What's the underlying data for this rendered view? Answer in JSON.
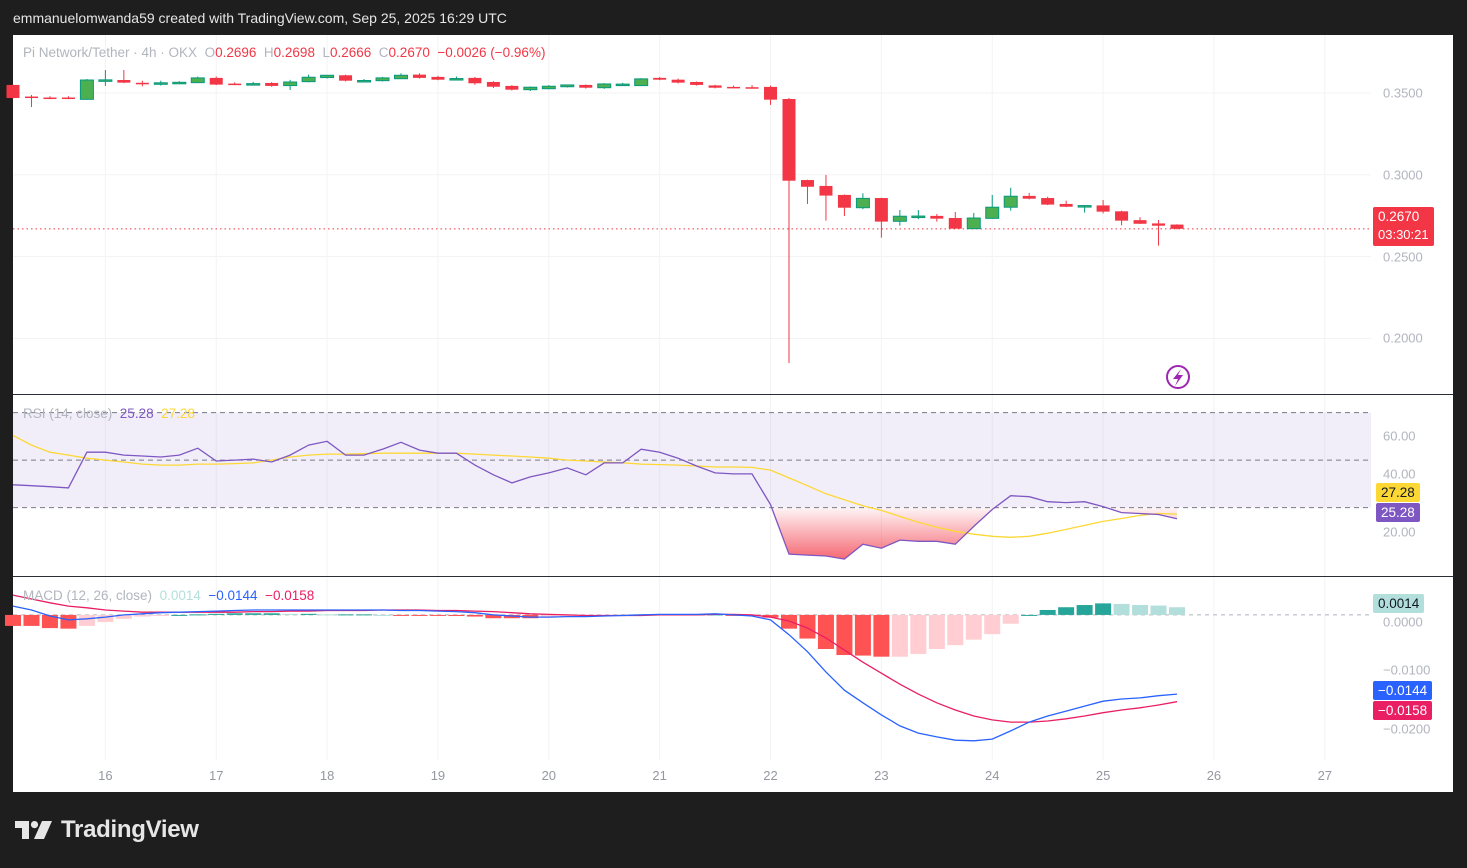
{
  "caption": "emmanuelomwanda59 created with TradingView.com, Sep 25, 2025 16:29 UTC",
  "brand": "TradingView",
  "legend": {
    "symbol": "Pi Network/Tether · 4h · OKX",
    "o_label": "O",
    "open": "0.2696",
    "h_label": "H",
    "high": "0.2698",
    "l_label": "L",
    "low": "0.2666",
    "c_label": "C",
    "close": "0.2670",
    "change": "−0.0026 (−0.96%)"
  },
  "price_tag": {
    "price": "0.2670",
    "countdown": "03:30:21"
  },
  "colors": {
    "up": "#4caf50",
    "up_border": "#089981",
    "down": "#f23645",
    "rsi": "#7e57c2",
    "rsi_ma": "#fdd835",
    "macd": "#2962ff",
    "signal": "#e91e63",
    "hist_neg_strong": "#ff5252",
    "hist_neg_weak": "#ffcdd2",
    "hist_pos_strong": "#26a69a",
    "hist_pos_weak": "#b2dfdb"
  },
  "icons": {
    "lightning": "lightning-bolt-icon",
    "logo": "tradingview-logo-icon"
  },
  "rsi_legend": {
    "title": "RSI (14, close)",
    "rsi": "25.28",
    "ma": "27.28"
  },
  "macd_legend": {
    "title": "MACD (12, 26, close)",
    "hist": "0.0014",
    "macd": "−0.0144",
    "signal": "−0.0158"
  },
  "chart_data": [
    {
      "type": "candlestick",
      "title": "Pi Network/Tether · 4h · OKX",
      "xlim": [
        "2025-09-15 04:00",
        "2025-09-27 10:00"
      ],
      "ylim": [
        0.1661,
        0.3854
      ],
      "grid": true,
      "y_ticks": [
        "0.3500",
        "0.3000",
        "0.2500",
        "0.2000"
      ],
      "y_tick_values": [
        0.35,
        0.3,
        0.25,
        0.2
      ],
      "x_ticks": [
        "16",
        "17",
        "18",
        "19",
        "20",
        "21",
        "22",
        "23",
        "24",
        "25",
        "26",
        "27"
      ],
      "x_tick_dates": [
        "2025-09-16 00:00",
        "2025-09-17 00:00",
        "2025-09-18 00:00",
        "2025-09-19 00:00",
        "2025-09-20 00:00",
        "2025-09-21 00:00",
        "2025-09-22 00:00",
        "2025-09-23 00:00",
        "2025-09-24 00:00",
        "2025-09-25 00:00",
        "2025-09-26 00:00",
        "2025-09-27 00:00"
      ],
      "last_price": 0.267,
      "candles_columns": [
        "time",
        "open",
        "high",
        "low",
        "close"
      ],
      "candles": [
        [
          "2025-09-15 04:00",
          0.3549,
          0.3552,
          0.3466,
          0.3469
        ],
        [
          "2025-09-15 08:00",
          0.3478,
          0.3488,
          0.3414,
          0.3474
        ],
        [
          "2025-09-15 12:00",
          0.3472,
          0.348,
          0.3462,
          0.347
        ],
        [
          "2025-09-15 16:00",
          0.3472,
          0.348,
          0.3462,
          0.3471
        ],
        [
          "2025-09-15 20:00",
          0.3461,
          0.3585,
          0.3458,
          0.3579
        ],
        [
          "2025-09-16 00:00",
          0.3577,
          0.364,
          0.3543,
          0.358
        ],
        [
          "2025-09-16 04:00",
          0.3579,
          0.364,
          0.356,
          0.3563
        ],
        [
          "2025-09-16 08:00",
          0.3562,
          0.3575,
          0.354,
          0.3561
        ],
        [
          "2025-09-16 12:00",
          0.3562,
          0.3575,
          0.3545,
          0.3562
        ],
        [
          "2025-09-16 16:00",
          0.3564,
          0.3572,
          0.3555,
          0.3565
        ],
        [
          "2025-09-16 20:00",
          0.3563,
          0.36,
          0.356,
          0.3592
        ],
        [
          "2025-09-17 00:00",
          0.3592,
          0.36,
          0.3548,
          0.3551
        ],
        [
          "2025-09-17 04:00",
          0.3557,
          0.3565,
          0.3548,
          0.3556
        ],
        [
          "2025-09-17 08:00",
          0.3557,
          0.3568,
          0.355,
          0.3557
        ],
        [
          "2025-09-17 12:00",
          0.3561,
          0.3566,
          0.3538,
          0.3543
        ],
        [
          "2025-09-17 16:00",
          0.3545,
          0.358,
          0.3518,
          0.3567
        ],
        [
          "2025-09-17 20:00",
          0.3569,
          0.3612,
          0.3565,
          0.3596
        ],
        [
          "2025-09-18 00:00",
          0.3594,
          0.361,
          0.3588,
          0.3608
        ],
        [
          "2025-09-18 04:00",
          0.3608,
          0.3612,
          0.357,
          0.3575
        ],
        [
          "2025-09-18 08:00",
          0.3575,
          0.3585,
          0.357,
          0.3576
        ],
        [
          "2025-09-18 12:00",
          0.3575,
          0.3598,
          0.357,
          0.3592
        ],
        [
          "2025-09-18 16:00",
          0.3587,
          0.362,
          0.3585,
          0.3608
        ],
        [
          "2025-09-18 20:00",
          0.3612,
          0.362,
          0.3588,
          0.3592
        ],
        [
          "2025-09-19 00:00",
          0.3598,
          0.3605,
          0.3578,
          0.3581
        ],
        [
          "2025-09-19 04:00",
          0.3587,
          0.36,
          0.3582,
          0.3588
        ],
        [
          "2025-09-19 08:00",
          0.3592,
          0.3598,
          0.355,
          0.3559
        ],
        [
          "2025-09-19 12:00",
          0.3567,
          0.3572,
          0.353,
          0.3538
        ],
        [
          "2025-09-19 16:00",
          0.3543,
          0.3548,
          0.3515,
          0.352
        ],
        [
          "2025-09-19 20:00",
          0.352,
          0.354,
          0.3512,
          0.3535
        ],
        [
          "2025-09-20 00:00",
          0.3526,
          0.3548,
          0.3522,
          0.3541
        ],
        [
          "2025-09-20 04:00",
          0.3538,
          0.3551,
          0.3533,
          0.3549
        ],
        [
          "2025-09-20 08:00",
          0.3549,
          0.3552,
          0.3527,
          0.3532
        ],
        [
          "2025-09-20 12:00",
          0.3532,
          0.356,
          0.3525,
          0.3555
        ],
        [
          "2025-09-20 16:00",
          0.3553,
          0.3562,
          0.3545,
          0.3554
        ],
        [
          "2025-09-20 20:00",
          0.3545,
          0.359,
          0.3542,
          0.3586
        ],
        [
          "2025-09-21 00:00",
          0.3592,
          0.3598,
          0.3578,
          0.3581
        ],
        [
          "2025-09-21 04:00",
          0.3581,
          0.3588,
          0.3558,
          0.3563
        ],
        [
          "2025-09-21 08:00",
          0.3567,
          0.357,
          0.3545,
          0.3549
        ],
        [
          "2025-09-21 12:00",
          0.3546,
          0.355,
          0.3528,
          0.3532
        ],
        [
          "2025-09-21 16:00",
          0.3537,
          0.3545,
          0.353,
          0.3536
        ],
        [
          "2025-09-21 20:00",
          0.3535,
          0.3548,
          0.353,
          0.3534
        ],
        [
          "2025-09-22 00:00",
          0.3537,
          0.3545,
          0.3427,
          0.3459
        ],
        [
          "2025-09-22 04:00",
          0.3463,
          0.347,
          0.185,
          0.2964
        ],
        [
          "2025-09-22 08:00",
          0.2968,
          0.297,
          0.2822,
          0.2927
        ],
        [
          "2025-09-22 12:00",
          0.2932,
          0.2999,
          0.272,
          0.2873
        ],
        [
          "2025-09-22 16:00",
          0.2877,
          0.288,
          0.2748,
          0.2799
        ],
        [
          "2025-09-22 20:00",
          0.2799,
          0.2887,
          0.279,
          0.2856
        ],
        [
          "2025-09-23 00:00",
          0.2858,
          0.286,
          0.2616,
          0.2714
        ],
        [
          "2025-09-23 04:00",
          0.2716,
          0.2785,
          0.2689,
          0.2747
        ],
        [
          "2025-09-23 08:00",
          0.2746,
          0.2785,
          0.2729,
          0.2748
        ],
        [
          "2025-09-23 12:00",
          0.2749,
          0.276,
          0.2714,
          0.2732
        ],
        [
          "2025-09-23 16:00",
          0.2736,
          0.2773,
          0.267,
          0.2671
        ],
        [
          "2025-09-23 20:00",
          0.2671,
          0.2767,
          0.2668,
          0.2736
        ],
        [
          "2025-09-24 00:00",
          0.2734,
          0.2877,
          0.2732,
          0.2802
        ],
        [
          "2025-09-24 04:00",
          0.2802,
          0.2921,
          0.2781,
          0.2869
        ],
        [
          "2025-09-24 08:00",
          0.2871,
          0.2889,
          0.285,
          0.2854
        ],
        [
          "2025-09-24 12:00",
          0.2858,
          0.2866,
          0.2815,
          0.2818
        ],
        [
          "2025-09-24 16:00",
          0.2822,
          0.2842,
          0.2803,
          0.2805
        ],
        [
          "2025-09-24 20:00",
          0.2808,
          0.2815,
          0.2769,
          0.2812
        ],
        [
          "2025-09-25 00:00",
          0.2813,
          0.2846,
          0.2764,
          0.2775
        ],
        [
          "2025-09-25 04:00",
          0.2777,
          0.2781,
          0.2691,
          0.272
        ],
        [
          "2025-09-25 08:00",
          0.2723,
          0.2741,
          0.27,
          0.2701
        ],
        [
          "2025-09-25 12:00",
          0.2703,
          0.2724,
          0.2567,
          0.2689
        ],
        [
          "2025-09-25 16:00",
          0.2696,
          0.2698,
          0.2666,
          0.267
        ]
      ]
    },
    {
      "type": "line",
      "title": "RSI (14, close)",
      "ylim": [
        1.2,
        77.4
      ],
      "y_ticks": [
        "60.00",
        "40.00",
        "20.00"
      ],
      "y_tick_values": [
        60,
        40,
        20
      ],
      "levels": [
        70,
        50,
        30
      ],
      "series": [
        {
          "name": "RSI",
          "values": [
            39.6,
            39.2,
            38.8,
            38.3,
            53.3,
            53.3,
            52.1,
            51.7,
            51.3,
            52.1,
            55.0,
            49.6,
            50.0,
            50.4,
            49.2,
            52.1,
            56.3,
            57.9,
            52.1,
            52.1,
            54.6,
            57.5,
            54.2,
            52.9,
            52.9,
            47.9,
            43.8,
            40.4,
            42.9,
            44.6,
            46.7,
            43.8,
            48.8,
            48.8,
            54.6,
            53.3,
            50.8,
            47.5,
            44.6,
            44.2,
            44.2,
            31.3,
            10.4,
            10.0,
            9.6,
            8.3,
            14.6,
            12.9,
            16.3,
            15.8,
            15.8,
            14.6,
            22.1,
            29.2,
            35.0,
            34.6,
            32.5,
            32.1,
            32.5,
            30.4,
            27.9,
            27.5,
            27.1,
            25.28
          ]
        },
        {
          "name": "MA",
          "values": [
            60.4,
            56.3,
            53.3,
            52.1,
            50.8,
            50.0,
            49.2,
            48.3,
            47.9,
            47.9,
            48.3,
            48.3,
            48.5,
            48.8,
            50.0,
            51.3,
            52.1,
            52.5,
            52.5,
            52.7,
            52.9,
            52.9,
            52.9,
            52.9,
            52.9,
            52.5,
            52.1,
            51.7,
            51.3,
            50.8,
            50.0,
            49.6,
            49.2,
            48.8,
            48.3,
            48.1,
            47.9,
            47.5,
            47.1,
            47.1,
            46.9,
            45.8,
            42.5,
            39.2,
            35.8,
            33.3,
            30.8,
            28.8,
            26.3,
            23.8,
            21.7,
            20.0,
            18.8,
            17.9,
            17.5,
            17.9,
            19.2,
            20.8,
            22.5,
            24.2,
            25.4,
            26.7,
            27.5,
            27.28
          ]
        }
      ]
    },
    {
      "type": "line",
      "title": "MACD (12, 26, close)",
      "ylim": [
        -0.0264,
        0.0069
      ],
      "y_ticks": [
        "0.0000",
        "−0.0100",
        "−0.0200"
      ],
      "y_tick_values": [
        0,
        -0.01,
        -0.02
      ],
      "series": [
        {
          "name": "MACD",
          "values": [
            0.0016,
            0.0009,
            -0.0002,
            -0.0009,
            -0.0007,
            -0.0004,
            0.0,
            0.0002,
            0.0004,
            0.0005,
            0.0006,
            0.0007,
            0.0008,
            0.0009,
            0.0009,
            0.0009,
            0.0009,
            0.0009,
            0.0009,
            0.0009,
            0.0009,
            0.0008,
            0.0008,
            0.0007,
            0.0006,
            0.0004,
            0.0,
            -0.0002,
            -0.0004,
            -0.0004,
            -0.0003,
            -0.0003,
            -0.0002,
            -0.0001,
            0.0,
            0.0001,
            0.0001,
            0.0001,
            0.0002,
            0.0,
            -0.0002,
            -0.0009,
            -0.0036,
            -0.0067,
            -0.0104,
            -0.0137,
            -0.016,
            -0.0182,
            -0.0202,
            -0.0215,
            -0.0222,
            -0.0228,
            -0.0229,
            -0.0226,
            -0.0211,
            -0.0195,
            -0.0184,
            -0.0175,
            -0.0166,
            -0.0157,
            -0.0153,
            -0.0151,
            -0.0147,
            -0.0144
          ]
        },
        {
          "name": "Signal",
          "values": [
            0.0036,
            0.0029,
            0.0022,
            0.0016,
            0.0013,
            0.0009,
            0.0007,
            0.0005,
            0.0005,
            0.0005,
            0.0005,
            0.0005,
            0.0005,
            0.0006,
            0.0006,
            0.0007,
            0.0007,
            0.0008,
            0.0008,
            0.0008,
            0.0009,
            0.0009,
            0.0009,
            0.0008,
            0.0008,
            0.0007,
            0.0006,
            0.0004,
            0.0002,
            0.0001,
            0.0,
            -0.0001,
            -0.0001,
            -0.0001,
            -0.0001,
            0.0,
            0.0,
            0.0,
            0.0001,
            0.0001,
            0.0,
            -0.0004,
            -0.0011,
            -0.0024,
            -0.0042,
            -0.0064,
            -0.0086,
            -0.0106,
            -0.0126,
            -0.0144,
            -0.016,
            -0.0173,
            -0.0184,
            -0.0191,
            -0.0195,
            -0.0195,
            -0.0193,
            -0.0189,
            -0.0184,
            -0.0178,
            -0.0173,
            -0.0169,
            -0.0164,
            -0.0158
          ]
        }
      ]
    }
  ]
}
